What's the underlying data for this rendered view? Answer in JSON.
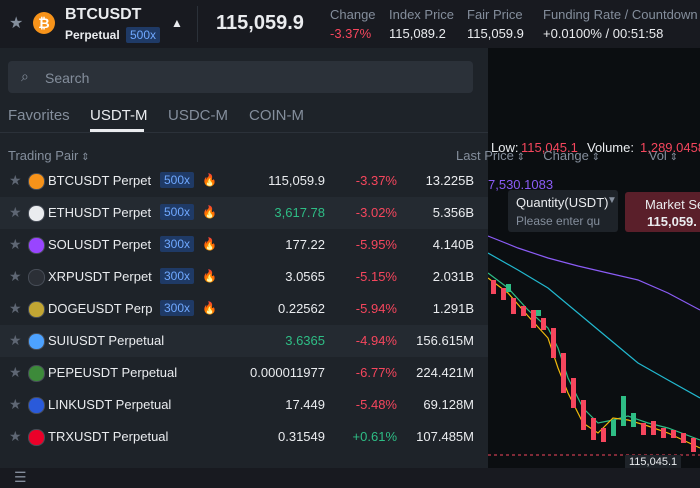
{
  "header": {
    "symbol": "BTCUSDT",
    "contract": "Perpetual",
    "leverage": "500x",
    "price": "115,059.9",
    "stats": [
      {
        "label": "Change",
        "value": "-3.37%",
        "color": "#f6465d"
      },
      {
        "label": "Index Price",
        "value": "115,089.2",
        "color": "#eaecef"
      },
      {
        "label": "Fair Price",
        "value": "115,059.9",
        "color": "#eaecef"
      },
      {
        "label": "Funding Rate / Countdown",
        "value": "+0.0100% / 00:51:58",
        "color": "#eaecef"
      }
    ]
  },
  "search": {
    "placeholder": "Search"
  },
  "tabs": {
    "items": [
      "Favorites",
      "USDT-M",
      "USDC-M",
      "COIN-M"
    ],
    "active": 1
  },
  "table": {
    "columns": [
      "Trading Pair",
      "Last Price",
      "Change",
      "Vol"
    ],
    "rows": [
      {
        "pair": "BTCUSDT Perpet",
        "leverage": "500x",
        "last_price": "115,059.9",
        "last_price_color": "#eaecef",
        "change": "-3.37%",
        "vol": "13.225B",
        "icon_color": "#f7931a"
      },
      {
        "pair": "ETHUSDT Perpet",
        "leverage": "500x",
        "last_price": "3,617.78",
        "last_price_color": "#2ebd85",
        "change": "-3.02%",
        "vol": "5.356B",
        "icon_color": "#eaecef"
      },
      {
        "pair": "SOLUSDT Perpet",
        "leverage": "300x",
        "last_price": "177.22",
        "last_price_color": "#eaecef",
        "change": "-5.95%",
        "vol": "4.140B",
        "icon_color": "#9945ff"
      },
      {
        "pair": "XRPUSDT Perpet",
        "leverage": "300x",
        "last_price": "3.0565",
        "last_price_color": "#eaecef",
        "change": "-5.15%",
        "vol": "2.031B",
        "icon_color": "#2b2f36"
      },
      {
        "pair": "DOGEUSDT Perp",
        "leverage": "300x",
        "last_price": "0.22562",
        "last_price_color": "#eaecef",
        "change": "-5.94%",
        "vol": "1.291B",
        "icon_color": "#c2a633"
      },
      {
        "pair": "SUIUSDT Perpetual",
        "last_price": "3.6365",
        "last_price_color": "#2ebd85",
        "change": "-4.94%",
        "vol": "156.615M",
        "icon_color": "#4da2ff"
      },
      {
        "pair": "PEPEUSDT Perpetual",
        "last_price": "0.000011977",
        "last_price_color": "#eaecef",
        "change": "-6.77%",
        "vol": "224.421M",
        "icon_color": "#3d8a3a"
      },
      {
        "pair": "LINKUSDT Perpetual",
        "last_price": "17.449",
        "last_price_color": "#eaecef",
        "change": "-5.48%",
        "vol": "69.128M",
        "icon_color": "#2a5ada"
      },
      {
        "pair": "TRXUSDT Perpetual",
        "last_price": "0.31549",
        "last_price_color": "#eaecef",
        "change": "+0.61%",
        "vol": "107.485M",
        "icon_color": "#eb0029"
      }
    ]
  },
  "chart": {
    "low_label": "Low:",
    "low_value": "115,045.1",
    "volume_label": "Volume:",
    "volume_value": "1,289.0458",
    "ma_value": "7,530.1083",
    "price_tag": "115,045.1"
  },
  "order": {
    "quantity_label": "Quantity(USDT)",
    "quantity_placeholder": "Please enter qu",
    "button_label": "Market Se",
    "button_price": "115,059."
  }
}
